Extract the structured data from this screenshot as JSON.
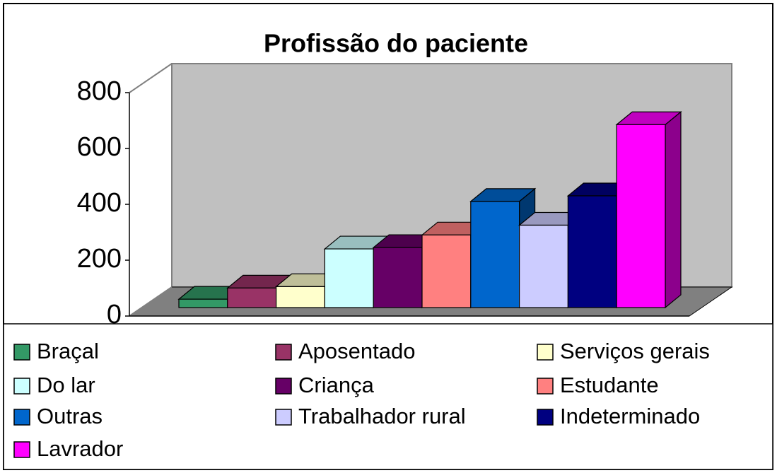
{
  "chart_data": {
    "type": "bar3d",
    "title": "Profissão do paciente",
    "series": [
      {
        "name": "Braçal",
        "color": "#339966",
        "values": [
          30
        ]
      },
      {
        "name": "Aposentado",
        "color": "#993366",
        "values": [
          70
        ]
      },
      {
        "name": "Serviços gerais",
        "color": "#ffffcc",
        "values": [
          75
        ]
      },
      {
        "name": "Do lar",
        "color": "#ccffff",
        "values": [
          210
        ]
      },
      {
        "name": "Criança",
        "color": "#660066",
        "values": [
          215
        ]
      },
      {
        "name": "Estudante",
        "color": "#ff8080",
        "values": [
          260
        ]
      },
      {
        "name": "Outras",
        "color": "#0066cc",
        "values": [
          380
        ]
      },
      {
        "name": "Trabalhador rural",
        "color": "#ccccff",
        "values": [
          295
        ]
      },
      {
        "name": "Indeterminado",
        "color": "#000080",
        "values": [
          400
        ]
      },
      {
        "name": "Lavrador",
        "color": "#ff00ff",
        "values": [
          655
        ]
      }
    ],
    "ylim": [
      0,
      800
    ],
    "yticks": [
      0,
      200,
      400,
      600,
      800
    ],
    "legend": "bottom"
  }
}
